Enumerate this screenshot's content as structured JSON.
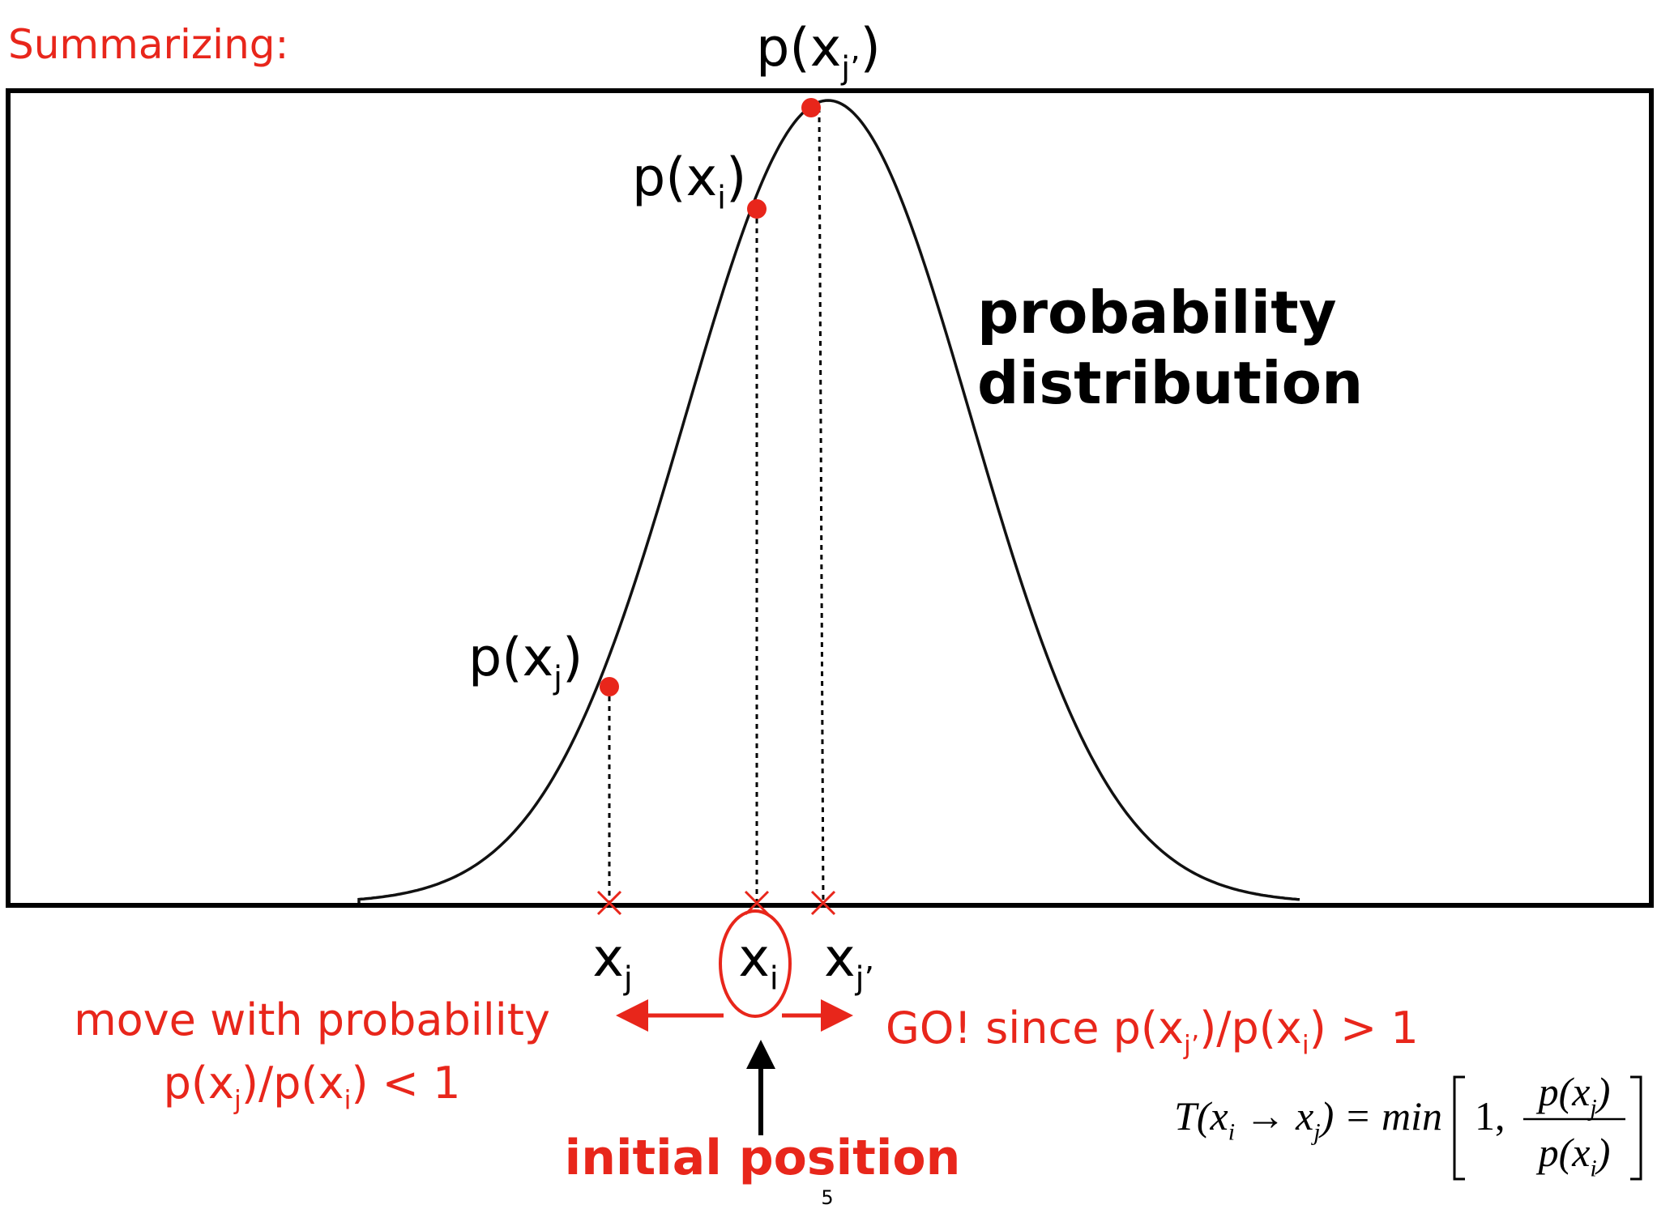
{
  "title": "Summarizing:",
  "curve_label": [
    "probability",
    "distribution"
  ],
  "points": [
    {
      "label": [
        {
          "text": "p(x"
        },
        {
          "sub": "j"
        },
        {
          "text": ")"
        }
      ]
    },
    {
      "label": [
        {
          "text": "p(x"
        },
        {
          "sub": "i"
        },
        {
          "text": ")"
        }
      ]
    },
    {
      "label": [
        {
          "text": "p(x"
        },
        {
          "sub": "j’"
        },
        {
          "text": ")"
        }
      ]
    }
  ],
  "axis_labels": [
    [
      {
        "text": "x"
      },
      {
        "sub": "j"
      }
    ],
    [
      {
        "text": "x"
      },
      {
        "sub": "i"
      }
    ],
    [
      {
        "text": "x"
      },
      {
        "sub": "j’"
      }
    ]
  ],
  "left_note": {
    "line1": "move with probability",
    "line2": [
      {
        "text": "p(x"
      },
      {
        "sub": "j"
      },
      {
        "text": ")/p(x"
      },
      {
        "sub": "i"
      },
      {
        "text": ") < 1"
      }
    ]
  },
  "right_note": [
    {
      "text": "GO! since  p(x"
    },
    {
      "sub": "j’"
    },
    {
      "text": ")/p(x"
    },
    {
      "sub": "i"
    },
    {
      "text": ") > 1"
    }
  ],
  "initial_position": "initial position",
  "formula": {
    "lhs": [
      {
        "text": "T(x"
      },
      {
        "sub": "i"
      },
      {
        "text": " → x"
      },
      {
        "sub": "j"
      },
      {
        "text": ") = min"
      }
    ],
    "one": "1,",
    "num": [
      {
        "text": "p(x"
      },
      {
        "sub": "j"
      },
      {
        "text": ")"
      }
    ],
    "den": [
      {
        "text": "p(x"
      },
      {
        "sub": "i"
      },
      {
        "text": ")"
      }
    ]
  },
  "page_number": "5"
}
